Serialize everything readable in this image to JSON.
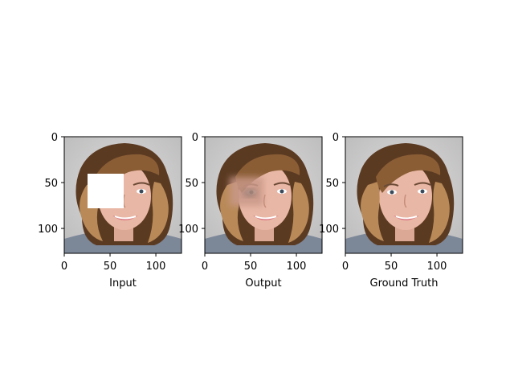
{
  "panels": [
    {
      "title": "Input",
      "x_ticks": [
        "0",
        "50",
        "100"
      ],
      "y_ticks": [
        "0",
        "50",
        "100"
      ],
      "mask": "white rectangle over left eye region"
    },
    {
      "title": "Output",
      "x_ticks": [
        "0",
        "50",
        "100"
      ],
      "y_ticks": [
        "0",
        "50",
        "100"
      ],
      "mask": "blurry inpainted left eye region"
    },
    {
      "title": "Ground Truth",
      "x_ticks": [
        "0",
        "50",
        "100"
      ],
      "y_ticks": [
        "0",
        "50",
        "100"
      ],
      "mask": "none"
    }
  ],
  "colors": {
    "background": "#cfcfd0",
    "hair_dark": "#5b3a22",
    "hair_light": "#b98a58",
    "skin": "#e9b7a5",
    "shirt": "#7c8798"
  }
}
